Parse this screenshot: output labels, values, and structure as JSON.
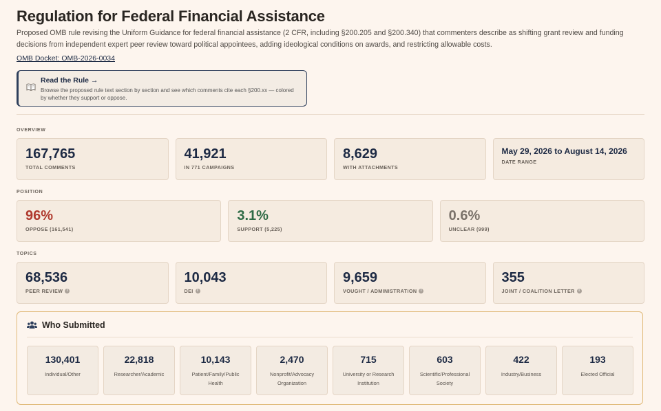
{
  "header": {
    "title": "Regulation for Federal Financial Assistance",
    "description": "Proposed OMB rule revising the Uniform Guidance for federal financial assistance (2 CFR, including §200.205 and §200.340) that commenters describe as shifting grant review and funding decisions from independent expert peer review toward political appointees, adding ideological conditions on awards, and restricting allowable costs.",
    "docket": "OMB Docket: OMB-2026-0034"
  },
  "read_rule": {
    "icon": "book-icon",
    "title": "Read the Rule →",
    "text": "Browse the proposed rule text section by section and see which comments cite each §200.xx — colored by whether they support or oppose."
  },
  "overview": {
    "label": "OVERVIEW",
    "cards": [
      {
        "value": "167,765",
        "label": "TOTAL COMMENTS"
      },
      {
        "value": "41,921",
        "label": "IN 771 CAMPAIGNS"
      },
      {
        "value": "8,629",
        "label": "WITH ATTACHMENTS"
      },
      {
        "value": "May 29, 2026 to August 14, 2026",
        "label": "DATE RANGE"
      }
    ]
  },
  "position": {
    "label": "POSITION",
    "cards": [
      {
        "value": "96%",
        "label": "OPPOSE (161,541)",
        "color": "#b03a2e"
      },
      {
        "value": "3.1%",
        "label": "SUPPORT (5,225)",
        "color": "#2f6b46"
      },
      {
        "value": "0.6%",
        "label": "UNCLEAR (999)",
        "color": "#7a726a"
      }
    ]
  },
  "topics": {
    "label": "TOPICS",
    "cards": [
      {
        "value": "68,536",
        "label": "PEER REVIEW"
      },
      {
        "value": "10,043",
        "label": "DEI"
      },
      {
        "value": "9,659",
        "label": "VOUGHT / ADMINISTRATION"
      },
      {
        "value": "355",
        "label": "JOINT / COALITION LETTER"
      }
    ]
  },
  "who": {
    "icon": "users-icon",
    "title": "Who Submitted",
    "cards": [
      {
        "value": "130,401",
        "label": "Individual/Other"
      },
      {
        "value": "22,818",
        "label": "Researcher/Academic"
      },
      {
        "value": "10,143",
        "label": "Patient/Family/Public Health"
      },
      {
        "value": "2,470",
        "label": "Nonprofit/Advocacy Organization"
      },
      {
        "value": "715",
        "label": "University or Research Institution"
      },
      {
        "value": "603",
        "label": "Scientific/Professional Society"
      },
      {
        "value": "422",
        "label": "Industry/Business"
      },
      {
        "value": "193",
        "label": "Elected Official"
      }
    ]
  }
}
